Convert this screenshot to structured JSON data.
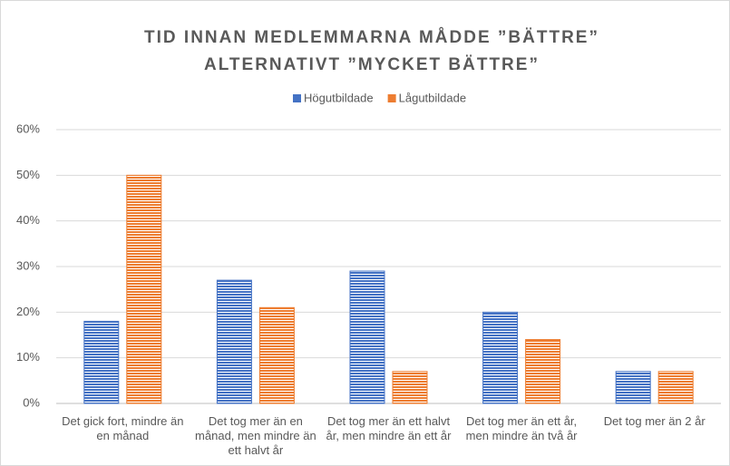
{
  "chart_data": {
    "type": "bar",
    "title": [
      "TID INNAN MEDLEMMARNA MÅDDE ”BÄTTRE”",
      "ALTERNATIVT ”MYCKET BÄTTRE”"
    ],
    "categories": [
      "Det gick fort, mindre än en månad",
      "Det tog mer än en månad, men mindre än ett halvt år",
      "Det tog mer än ett halvt år, men mindre än ett år",
      "Det tog mer än ett år, men mindre än två år",
      "Det tog mer än 2 år"
    ],
    "series": [
      {
        "name": "Högutbildade",
        "color": "#4472c4",
        "values": [
          18,
          27,
          29,
          20,
          7
        ]
      },
      {
        "name": "Lågutbildade",
        "color": "#ed7d31",
        "values": [
          50,
          21,
          7,
          14,
          7
        ]
      }
    ],
    "ylim": [
      0,
      60
    ],
    "yticks": [
      {
        "value": 0,
        "label": "0%"
      },
      {
        "value": 10,
        "label": "10%"
      },
      {
        "value": 20,
        "label": "20%"
      },
      {
        "value": 30,
        "label": "30%"
      },
      {
        "value": 40,
        "label": "40%"
      },
      {
        "value": 50,
        "label": "50%"
      },
      {
        "value": 60,
        "label": "60%"
      }
    ],
    "grid": true,
    "legend": "top"
  }
}
